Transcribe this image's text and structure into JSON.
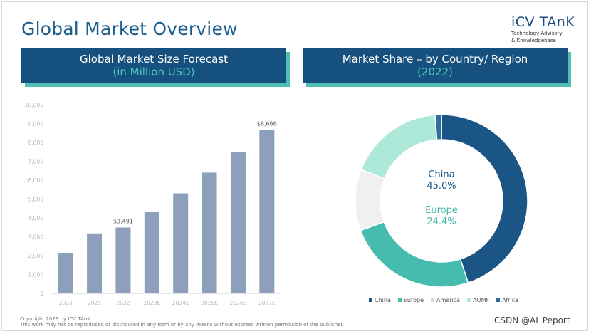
{
  "page": {
    "title": "Global Market Overview",
    "logo_name": "iCV TAnK",
    "logo_sub1": "Technology Advisory",
    "logo_sub2": "& Knowledgebase",
    "footer_line1": "Copyright 2023 by ICV TAnK",
    "footer_line2": "This work may not be reproduced or distributed in any form or by any means without express written permission of the publisher.",
    "watermark": "CSDN @AI_Peport"
  },
  "colors": {
    "bar": "#8e9fbb",
    "navy": "#15507e",
    "teal": "#4fc1b4",
    "china": "#1b5585",
    "europe": "#45bcad",
    "america": "#f0f0f0",
    "aomf": "#aee8d8",
    "africa": "#2e6e9f"
  },
  "chart_data": [
    {
      "type": "bar",
      "title": "Global Market Size Forecast",
      "subtitle": "(in Million USD)",
      "categories": [
        "2020",
        "2021",
        "2022",
        "2023E",
        "2024E",
        "2025E",
        "2026E",
        "2027E"
      ],
      "values": [
        2150,
        3180,
        3491,
        4300,
        5300,
        6400,
        7500,
        8666
      ],
      "data_labels": {
        "2": "$3,491",
        "7": "$8,666"
      },
      "ylim": [
        0,
        10000
      ],
      "yticks": [
        "0",
        "1,000",
        "2,000",
        "3,000",
        "4,000",
        "5,000",
        "6,000",
        "7,000",
        "8,000",
        "9,000",
        "10,000"
      ],
      "grid": false
    },
    {
      "type": "pie",
      "title": "Market Share – by Country/ Region",
      "subtitle": "(2022)",
      "labels": [
        "China",
        "Europe",
        "America",
        "AOMF",
        "Africa"
      ],
      "values": [
        45.0,
        24.4,
        11.5,
        17.9,
        1.2
      ],
      "center_labels": [
        {
          "name": "China",
          "value": "45.0%"
        },
        {
          "name": "Europe",
          "value": "24.4%"
        }
      ],
      "legend": "bottom"
    }
  ]
}
